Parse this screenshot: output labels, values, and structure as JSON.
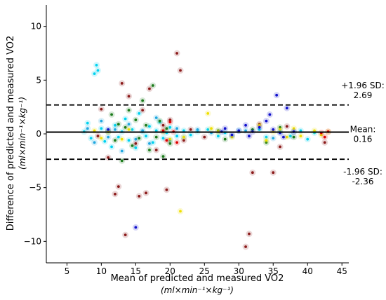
{
  "chart_data": {
    "type": "scatter",
    "title": "",
    "xlabel": "Mean of predicted and measured VO2",
    "xlabel_unit": "(ml×min⁻¹×kg⁻¹)",
    "ylabel": "Difference of predicted and measured VO2",
    "ylabel_unit": "(ml×min⁻¹×kg⁻¹)",
    "xlim": [
      2,
      46
    ],
    "ylim": [
      -12,
      12
    ],
    "xticks": [
      5,
      10,
      15,
      20,
      25,
      30,
      35,
      40,
      45
    ],
    "yticks": [
      -10,
      -5,
      0,
      5,
      10
    ],
    "xtick_labels": [
      "5",
      "10",
      "15",
      "20",
      "25",
      "30",
      "35",
      "40",
      "45"
    ],
    "ytick_labels": [
      "−10",
      "−5",
      "0",
      "5",
      "10"
    ],
    "reference_lines": [
      {
        "name": "upper",
        "value": 2.69,
        "style": "dashed",
        "label_line1": "+1.96 SD:",
        "label_line2": "2.69"
      },
      {
        "name": "mean",
        "value": 0.16,
        "style": "solid",
        "label_line1": "Mean:",
        "label_line2": "0.16"
      },
      {
        "name": "lower",
        "value": -2.36,
        "style": "dashed",
        "label_line1": "-1.96 SD:",
        "label_line2": "-2.36"
      }
    ],
    "grid": false,
    "series": [
      {
        "color": "#00d2f0",
        "points": [
          [
            7.5,
            0.2
          ],
          [
            8,
            1
          ],
          [
            8.5,
            -0.4
          ],
          [
            9,
            5.6
          ],
          [
            9.3,
            6.4
          ],
          [
            9.5,
            5.9
          ],
          [
            10,
            0.5
          ],
          [
            10.5,
            -0.7
          ],
          [
            11,
            0.3
          ],
          [
            11.5,
            -1.2
          ],
          [
            12,
            0.8
          ],
          [
            12.5,
            -0.3
          ],
          [
            13,
            0.2
          ],
          [
            13.5,
            1.4
          ],
          [
            14,
            -0.6
          ],
          [
            14.5,
            0.4
          ],
          [
            15,
            -1.3
          ],
          [
            15.5,
            1.9
          ],
          [
            16,
            0.2
          ],
          [
            16.5,
            -0.2
          ],
          [
            17,
            0.7
          ],
          [
            17.5,
            -0.8
          ],
          [
            18,
            0.3
          ],
          [
            18.5,
            1.1
          ],
          [
            19,
            -0.4
          ],
          [
            19.5,
            0.1
          ],
          [
            20,
            0.6
          ],
          [
            21,
            -0.2
          ],
          [
            22,
            0.3
          ],
          [
            23,
            -0.1
          ],
          [
            24,
            0.2
          ],
          [
            25.5,
            0.4
          ],
          [
            27,
            -0.2
          ],
          [
            28,
            0.1
          ],
          [
            30,
            0.3
          ],
          [
            33,
            0.4
          ],
          [
            34,
            -0.3
          ],
          [
            36,
            0.2
          ],
          [
            37.5,
            -0.2
          ],
          [
            39,
            0.3
          ],
          [
            40,
            -0.5
          ],
          [
            41,
            0.1
          ]
        ]
      },
      {
        "color": "#1fa8e0",
        "points": [
          [
            8,
            0.5
          ],
          [
            9,
            -0.8
          ],
          [
            10,
            1.2
          ],
          [
            11,
            -0.3
          ],
          [
            12,
            0.4
          ],
          [
            13,
            -1.6
          ],
          [
            14,
            0.9
          ],
          [
            15,
            -0.5
          ],
          [
            16,
            0.3
          ],
          [
            17,
            -0.9
          ],
          [
            18,
            1.5
          ],
          [
            19,
            0.2
          ],
          [
            20,
            -0.6
          ],
          [
            21,
            0.5
          ],
          [
            22,
            -0.3
          ],
          [
            24,
            0.4
          ],
          [
            26,
            0.1
          ],
          [
            29,
            -0.2
          ],
          [
            31,
            0.3
          ],
          [
            35,
            -0.4
          ],
          [
            38,
            0.2
          ]
        ]
      },
      {
        "color": "#1a7a1a",
        "points": [
          [
            11,
            0.2
          ],
          [
            11.5,
            1.8
          ],
          [
            12,
            -0.6
          ],
          [
            12.5,
            0.9
          ],
          [
            13,
            -2.5
          ],
          [
            13.5,
            0.6
          ],
          [
            14,
            2.2
          ],
          [
            14.5,
            -1.1
          ],
          [
            15,
            1.3
          ],
          [
            15.5,
            -0.4
          ],
          [
            16,
            3.1
          ],
          [
            16.5,
            0.8
          ],
          [
            17,
            -1.5
          ],
          [
            17.5,
            4.5
          ],
          [
            18,
            -0.3
          ],
          [
            18.5,
            1.2
          ],
          [
            19,
            -2.1
          ],
          [
            19.5,
            0.5
          ],
          [
            20,
            -0.9
          ],
          [
            27,
            0.3
          ],
          [
            28,
            -0.5
          ],
          [
            32,
            0.4
          ],
          [
            34,
            -0.8
          ],
          [
            36,
            0.6
          ],
          [
            38,
            -0.3
          ]
        ]
      },
      {
        "color": "#8b1a1a",
        "points": [
          [
            9.5,
            -0.2
          ],
          [
            10,
            2.3
          ],
          [
            11,
            -2.2
          ],
          [
            12,
            -5.6
          ],
          [
            12.5,
            -4.9
          ],
          [
            13,
            4.7
          ],
          [
            13.5,
            -9.4
          ],
          [
            14,
            3.5
          ],
          [
            15,
            -0.9
          ],
          [
            15.5,
            -5.8
          ],
          [
            16,
            2.2
          ],
          [
            16.5,
            -5.5
          ],
          [
            17,
            4.2
          ],
          [
            18,
            -1.5
          ],
          [
            19,
            0.8
          ],
          [
            19.5,
            -5.2
          ],
          [
            20,
            1.3
          ],
          [
            21,
            7.5
          ],
          [
            21.5,
            5.9
          ],
          [
            22,
            -0.6
          ],
          [
            23,
            0.4
          ],
          [
            25,
            -0.3
          ],
          [
            31,
            -10.5
          ],
          [
            31.5,
            -9.3
          ],
          [
            32,
            -3.6
          ],
          [
            33,
            0.9
          ],
          [
            35,
            -3.6
          ],
          [
            36,
            -1.2
          ],
          [
            37,
            0.7
          ],
          [
            42.5,
            -0.8
          ]
        ]
      },
      {
        "color": "#f0e000",
        "points": [
          [
            9,
            0.3
          ],
          [
            10,
            -0.4
          ],
          [
            11,
            0.2
          ],
          [
            13,
            -0.5
          ],
          [
            14,
            0.4
          ],
          [
            19,
            0.2
          ],
          [
            20,
            -0.5
          ],
          [
            21.5,
            -7.2
          ],
          [
            22,
            -0.3
          ],
          [
            25.5,
            1.9
          ],
          [
            26,
            0.5
          ],
          [
            27,
            0.2
          ],
          [
            29,
            -0.3
          ],
          [
            33,
            0.8
          ],
          [
            34,
            -0.6
          ],
          [
            35,
            0.2
          ],
          [
            36,
            0.4
          ],
          [
            37,
            -0.3
          ],
          [
            38,
            0.5
          ],
          [
            39,
            -0.2
          ],
          [
            41,
            0.3
          ],
          [
            42,
            -0.1
          ],
          [
            43,
            0.2
          ]
        ]
      },
      {
        "color": "#1010cc",
        "points": [
          [
            11,
            0.4
          ],
          [
            15,
            -8.7
          ],
          [
            27.5,
            0.2
          ],
          [
            28,
            0.5
          ],
          [
            29,
            -0.1
          ],
          [
            30,
            0.3
          ],
          [
            31,
            0.8
          ],
          [
            31.5,
            -0.2
          ],
          [
            32,
            0.2
          ],
          [
            33,
            0.6
          ],
          [
            34,
            1.2
          ],
          [
            34.5,
            1.8
          ],
          [
            35,
            0.4
          ],
          [
            35.5,
            3.6
          ],
          [
            36,
            0.1
          ],
          [
            36.5,
            -0.3
          ],
          [
            37,
            2.4
          ],
          [
            38,
            0.2
          ]
        ]
      },
      {
        "color": "#dd0000",
        "points": [
          [
            19,
            0.3
          ],
          [
            19.5,
            -0.6
          ],
          [
            20,
            1.1
          ],
          [
            20.5,
            0.2
          ],
          [
            21,
            -0.8
          ],
          [
            42,
            0.1
          ],
          [
            42.5,
            -0.3
          ],
          [
            43,
            0.2
          ]
        ]
      }
    ]
  }
}
